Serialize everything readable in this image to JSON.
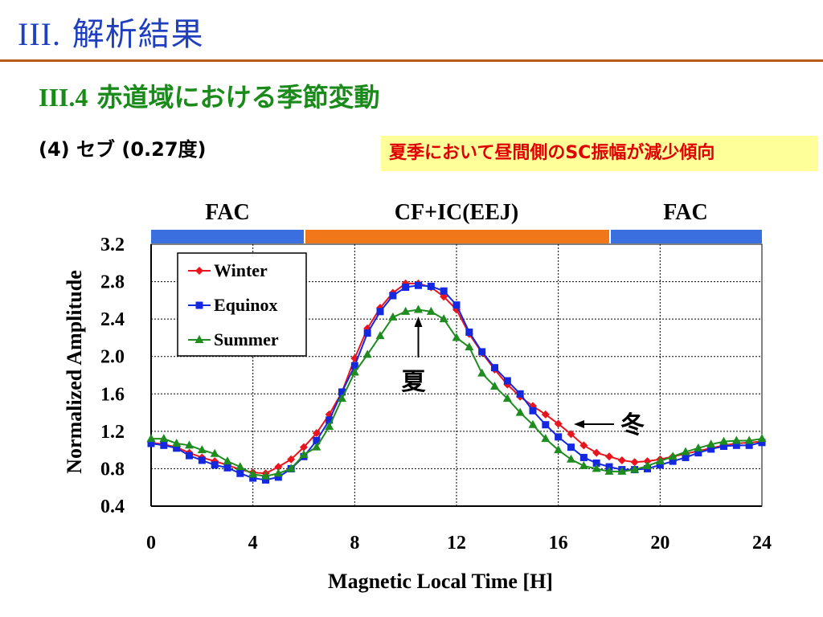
{
  "header": {
    "title_num": "III.",
    "title_text": "解析結果",
    "section_num": "III.4",
    "section_text": "赤道域における季節変動",
    "subtitle": "(4) セブ (0.27度)",
    "note": "夏季において昼間側のSC振幅が減少傾向"
  },
  "colors": {
    "winter": "#e8141e",
    "equinox": "#1428e0",
    "summer": "#1e8c1e",
    "band_fac": "#3a6fe0",
    "band_eej": "#f07818",
    "title": "#1f3fbf"
  },
  "chart_data": {
    "type": "line",
    "xlabel": "Magnetic Local Time [H]",
    "ylabel": "Normalized Amplitude",
    "xlim": [
      0,
      24
    ],
    "ylim": [
      0.4,
      3.2
    ],
    "xticks": [
      0,
      4,
      8,
      12,
      16,
      20,
      24
    ],
    "yticks": [
      0.4,
      0.8,
      1.2,
      1.6,
      2.0,
      2.4,
      2.8,
      3.2
    ],
    "ytick_labels": [
      "0.4",
      "0.8",
      "1.2",
      "1.6",
      "2.0",
      "2.4",
      "2.8",
      "3.2"
    ],
    "grid": true,
    "legend_position": "top-left",
    "regions": [
      {
        "label": "FAC",
        "x0": 0,
        "x1": 6,
        "color": "#3a6fe0"
      },
      {
        "label": "CF+IC(EEJ)",
        "x0": 6,
        "x1": 18,
        "color": "#f07818"
      },
      {
        "label": "FAC",
        "x0": 18,
        "x1": 24,
        "color": "#3a6fe0"
      }
    ],
    "x": [
      0,
      0.5,
      1,
      1.5,
      2,
      2.5,
      3,
      3.5,
      4,
      4.5,
      5,
      5.5,
      6,
      6.5,
      7,
      7.5,
      8,
      8.5,
      9,
      9.5,
      10,
      10.5,
      11,
      11.5,
      12,
      12.5,
      13,
      13.5,
      14,
      14.5,
      15,
      15.5,
      16,
      16.5,
      17,
      17.5,
      18,
      18.5,
      19,
      19.5,
      20,
      20.5,
      21,
      21.5,
      22,
      22.5,
      23,
      23.5,
      24
    ],
    "series": [
      {
        "name": "Winter",
        "marker": "diamond",
        "values": [
          1.08,
          1.06,
          1.03,
          0.97,
          0.92,
          0.88,
          0.84,
          0.79,
          0.76,
          0.75,
          0.82,
          0.9,
          1.03,
          1.18,
          1.38,
          1.62,
          1.98,
          2.3,
          2.52,
          2.68,
          2.78,
          2.78,
          2.74,
          2.64,
          2.5,
          2.24,
          2.04,
          1.86,
          1.7,
          1.57,
          1.47,
          1.38,
          1.28,
          1.17,
          1.05,
          0.97,
          0.93,
          0.89,
          0.87,
          0.88,
          0.9,
          0.93,
          0.96,
          0.99,
          1.02,
          1.05,
          1.07,
          1.08,
          1.09
        ]
      },
      {
        "name": "Equinox",
        "marker": "square",
        "values": [
          1.07,
          1.05,
          1.02,
          0.94,
          0.89,
          0.84,
          0.81,
          0.75,
          0.7,
          0.68,
          0.71,
          0.8,
          0.93,
          1.1,
          1.32,
          1.62,
          1.9,
          2.25,
          2.48,
          2.65,
          2.74,
          2.76,
          2.75,
          2.7,
          2.55,
          2.26,
          2.05,
          1.88,
          1.74,
          1.6,
          1.42,
          1.27,
          1.14,
          1.03,
          0.92,
          0.86,
          0.82,
          0.79,
          0.79,
          0.8,
          0.84,
          0.88,
          0.92,
          0.97,
          1.01,
          1.04,
          1.05,
          1.05,
          1.08
        ]
      },
      {
        "name": "Summer",
        "marker": "triangle",
        "values": [
          1.12,
          1.12,
          1.07,
          1.05,
          1.0,
          0.96,
          0.88,
          0.82,
          0.74,
          0.72,
          0.75,
          0.8,
          0.95,
          1.03,
          1.25,
          1.55,
          1.83,
          2.02,
          2.22,
          2.42,
          2.48,
          2.5,
          2.48,
          2.4,
          2.2,
          2.1,
          1.82,
          1.68,
          1.55,
          1.4,
          1.27,
          1.12,
          1.0,
          0.9,
          0.83,
          0.8,
          0.77,
          0.77,
          0.79,
          0.83,
          0.88,
          0.93,
          0.98,
          1.02,
          1.06,
          1.09,
          1.1,
          1.1,
          1.12
        ]
      }
    ],
    "annotations": [
      {
        "text": "夏",
        "x": 10.5,
        "y": 2.48
      },
      {
        "text": "冬",
        "x": 16.8,
        "y": 1.17
      }
    ]
  }
}
